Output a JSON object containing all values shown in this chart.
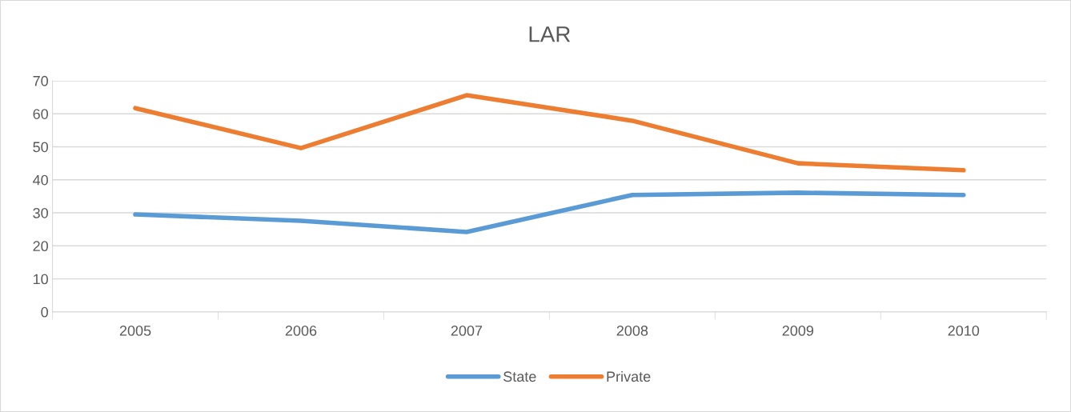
{
  "chart_data": {
    "type": "line",
    "title": "LAR",
    "categories": [
      "2005",
      "2006",
      "2007",
      "2008",
      "2009",
      "2010"
    ],
    "series": [
      {
        "name": "State",
        "color": "#5b9bd5",
        "values": [
          29.5,
          27.6,
          24.2,
          35.4,
          36.1,
          35.4
        ]
      },
      {
        "name": "Private",
        "color": "#ed7d31",
        "values": [
          61.7,
          49.6,
          65.6,
          57.9,
          45.0,
          42.9
        ]
      }
    ],
    "ylim": [
      0,
      70
    ],
    "yticks": [
      0,
      10,
      20,
      30,
      40,
      50,
      60,
      70
    ],
    "grid": "y",
    "legend": "bottom",
    "marker": "none",
    "line_style": "solid"
  }
}
